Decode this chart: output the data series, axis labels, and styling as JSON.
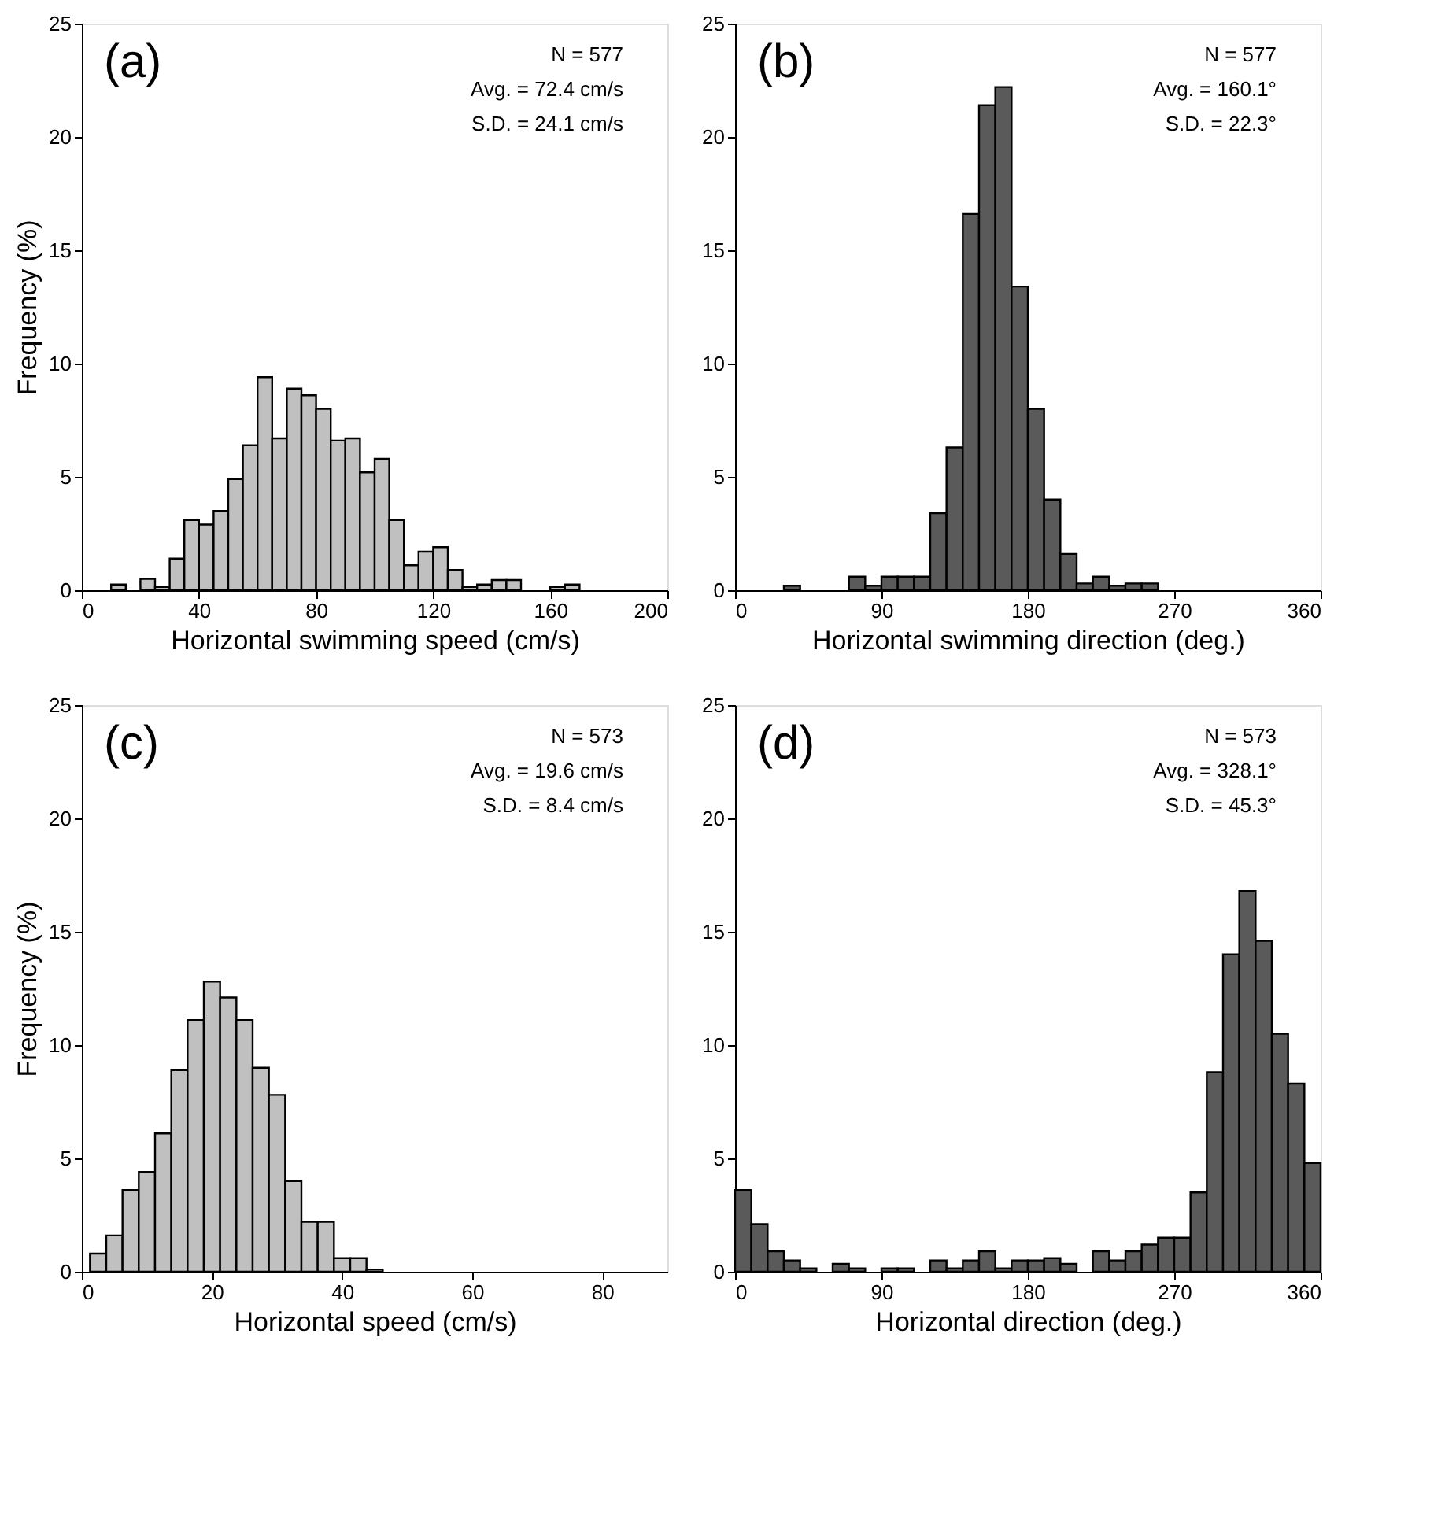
{
  "chart_data": [
    {
      "type": "histogram",
      "xlabel": "Horizontal swimming speed (cm/s)",
      "ylabel": "Frequency (%)",
      "color": "#c0c0c0",
      "bins": [
        0,
        5,
        10,
        15,
        20,
        25,
        30,
        35,
        40,
        45,
        50,
        55,
        60,
        65,
        70,
        75,
        80,
        85,
        90,
        95,
        100,
        105,
        110,
        115,
        120,
        125,
        130,
        135,
        140,
        145,
        150,
        155,
        160,
        165,
        170
      ],
      "values": [
        0,
        0,
        0.25,
        0,
        0.5,
        0.15,
        1.4,
        3.1,
        2.9,
        3.5,
        4.9,
        6.4,
        9.4,
        6.7,
        8.9,
        8.6,
        8.0,
        6.6,
        6.7,
        5.2,
        5.8,
        3.1,
        1.1,
        1.7,
        1.9,
        0.9,
        0.15,
        0.25,
        0.45,
        0.45,
        0,
        0,
        0.15,
        0.25
      ],
      "xlim": [
        0,
        200
      ],
      "xticks": [
        0,
        40,
        80,
        120,
        160,
        200
      ],
      "ylim": [
        0,
        25
      ],
      "yticks": [
        0,
        5,
        10,
        15,
        20,
        25
      ],
      "annotations": [
        "(a)",
        "N = 577",
        "Avg. = 72.4 cm/s",
        "S.D. = 24.1 cm/s"
      ]
    },
    {
      "type": "histogram",
      "xlabel": "Horizontal swimming direction (deg.)",
      "color": "#5a5a5a",
      "bins": [
        30,
        40,
        50,
        60,
        70,
        80,
        90,
        100,
        110,
        120,
        130,
        140,
        150,
        160,
        170,
        180,
        190,
        200,
        210,
        220,
        230,
        240,
        250,
        260
      ],
      "values": [
        0.2,
        0,
        0,
        0,
        0.6,
        0.2,
        0.6,
        0.6,
        0.6,
        3.4,
        6.3,
        16.6,
        21.4,
        22.2,
        13.4,
        8.0,
        4.0,
        1.6,
        0.3,
        0.6,
        0.2,
        0.3,
        0.3
      ],
      "xlim": [
        0,
        360
      ],
      "xticks": [
        0,
        90,
        180,
        270,
        360
      ],
      "ylim": [
        0,
        25
      ],
      "yticks": [
        0,
        5,
        10,
        15,
        20,
        25
      ],
      "annotations": [
        "(b)",
        "N = 577",
        "Avg. = 160.1°",
        "S.D. =  22.3°"
      ]
    },
    {
      "type": "histogram",
      "xlabel": "Horizontal speed (cm/s)",
      "ylabel": "Frequency (%)",
      "color": "#c0c0c0",
      "bins": [
        1.25,
        3.75,
        6.25,
        8.75,
        11.25,
        13.75,
        16.25,
        18.75,
        21.25,
        23.75,
        26.25,
        28.75,
        31.25,
        33.75,
        36.25,
        38.75,
        41.25,
        43.75,
        46.25
      ],
      "values": [
        0.8,
        1.6,
        3.6,
        4.4,
        6.1,
        8.9,
        11.1,
        12.8,
        12.1,
        11.1,
        9.0,
        7.8,
        4.0,
        2.2,
        2.2,
        0.6,
        0.6,
        0.1
      ],
      "xlim": [
        0,
        90
      ],
      "xticks": [
        0,
        20,
        40,
        60,
        80
      ],
      "ylim": [
        0,
        25
      ],
      "yticks": [
        0,
        5,
        10,
        15,
        20,
        25
      ],
      "annotations": [
        "(c)",
        "N = 573",
        "Avg. = 19.6 cm/s",
        "S.D. =  8.4 cm/s"
      ]
    },
    {
      "type": "histogram",
      "xlabel": "Horizontal direction (deg.)",
      "color": "#5a5a5a",
      "bins": [
        0,
        10,
        20,
        30,
        40,
        50,
        60,
        70,
        80,
        90,
        100,
        110,
        120,
        130,
        140,
        150,
        160,
        170,
        180,
        190,
        200,
        210,
        220,
        230,
        240,
        250,
        260,
        270,
        280,
        290,
        300,
        310,
        320,
        330,
        340,
        350,
        360
      ],
      "values": [
        3.6,
        2.1,
        0.9,
        0.5,
        0.15,
        0,
        0.35,
        0.15,
        0,
        0.15,
        0.15,
        0,
        0.5,
        0.15,
        0.5,
        0.9,
        0.15,
        0.5,
        0.5,
        0.6,
        0.35,
        0,
        0.9,
        0.5,
        0.9,
        1.2,
        1.5,
        1.5,
        3.5,
        8.8,
        14.0,
        16.8,
        14.6,
        10.5,
        8.3,
        4.8
      ],
      "xlim": [
        0,
        360
      ],
      "xticks": [
        0,
        90,
        180,
        270,
        360
      ],
      "ylim": [
        0,
        25
      ],
      "yticks": [
        0,
        5,
        10,
        15,
        20,
        25
      ],
      "annotations": [
        "(d)",
        "N = 573",
        "Avg. = 328.1°",
        "S.D. =  45.3°"
      ]
    }
  ]
}
